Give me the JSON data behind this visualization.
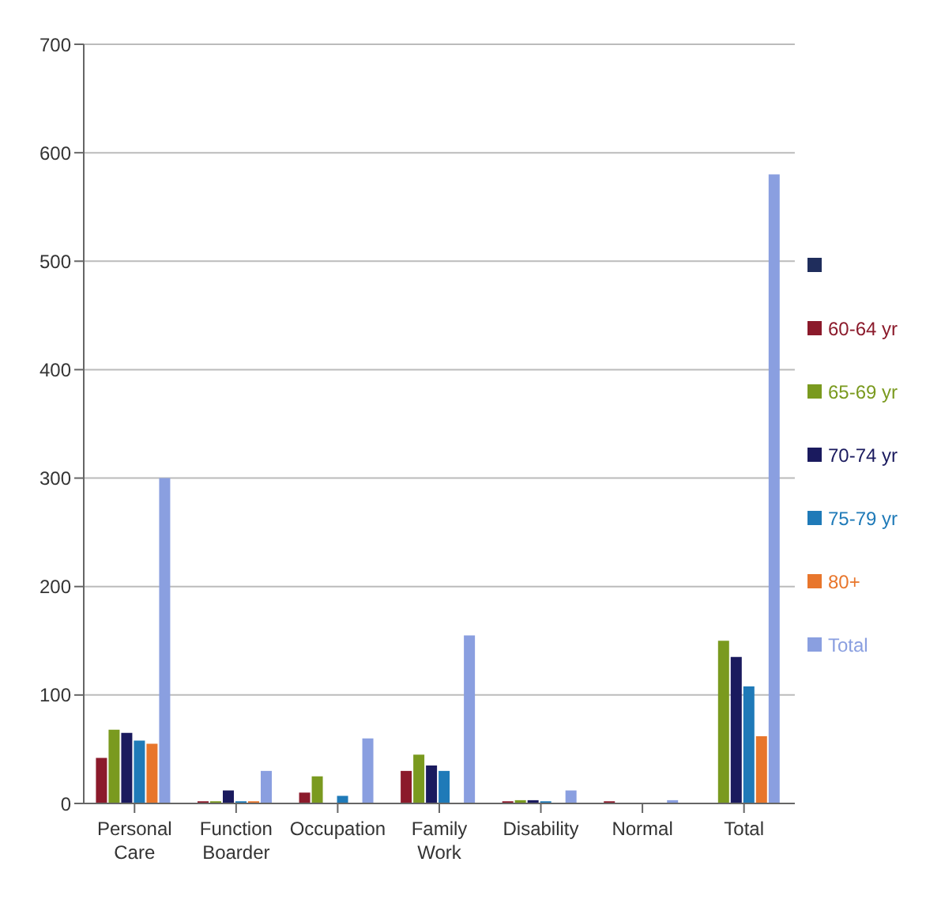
{
  "chart_data": {
    "type": "bar",
    "categories": [
      "Personal Care",
      "Function Boarder",
      "Occupation",
      "Family Work",
      "Disability",
      "Normal",
      "Total"
    ],
    "series": [
      {
        "name": "60-64 yr",
        "color": "#8b1a2b",
        "values": [
          42,
          2,
          10,
          30,
          2,
          2,
          0
        ]
      },
      {
        "name": "65-69 yr",
        "color": "#7a9a1f",
        "values": [
          68,
          2,
          25,
          45,
          3,
          0,
          150
        ]
      },
      {
        "name": "70-74 yr",
        "color": "#1a1a5e",
        "values": [
          65,
          12,
          0,
          35,
          3,
          0,
          135
        ]
      },
      {
        "name": "75-79 yr",
        "color": "#1f7ab8",
        "values": [
          58,
          2,
          7,
          30,
          2,
          0,
          108
        ]
      },
      {
        "name": "80+",
        "color": "#e8762c",
        "values": [
          55,
          2,
          0,
          0,
          0,
          0,
          62
        ]
      },
      {
        "name": "Total",
        "color": "#8a9fe0",
        "values": [
          300,
          30,
          60,
          155,
          12,
          3,
          580
        ]
      }
    ],
    "ylim": [
      0,
      700
    ],
    "yticks": [
      0,
      100,
      200,
      300,
      400,
      500,
      600,
      700
    ],
    "grid": "y",
    "legend": "right"
  }
}
